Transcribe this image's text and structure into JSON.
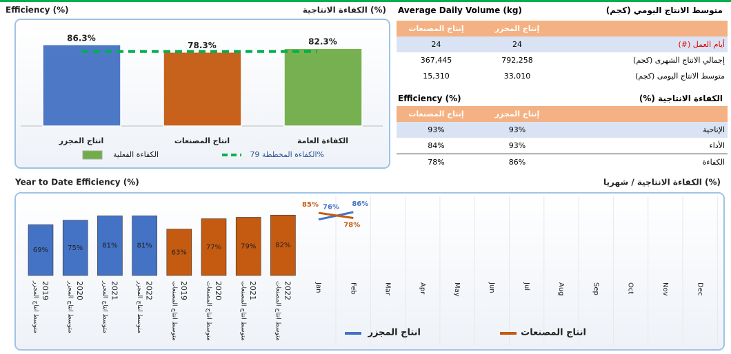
{
  "chart_data": [
    {
      "type": "bar",
      "title": "Efficiency (%)",
      "title_ar": "الكفاءة الانتاجية (%)",
      "categories": [
        "انتاج المجزر",
        "انتاج المصنعات",
        "الكفاءة العامة"
      ],
      "values": [
        86.3,
        78.3,
        82.3
      ],
      "value_labels": [
        "86.3%",
        "78.3%",
        "82.3%"
      ],
      "colors": [
        "#4472c4",
        "#c55a11",
        "#70ad47"
      ],
      "ylim": [
        0,
        100
      ],
      "legend": "الكفاءة الفعلية",
      "target": {
        "name": "الكفاءة المخططة 79%",
        "value": 79,
        "color": "#00b050"
      }
    },
    {
      "type": "bar",
      "title": "Year to Date Efficiency (%)",
      "categories": [
        "متوسط انتاج المجزر",
        "متوسط انتاج المجزر",
        "متوسط انتاج المجزر",
        "متوسط انتاج المجزر",
        "متوسط انتاج المصنعات",
        "متوسط انتاج المصنعات",
        "متوسط انتاج المصنعات",
        "متوسط انتاج المصنعات"
      ],
      "years": [
        "2019",
        "2020",
        "2021",
        "2022",
        "2019",
        "2020",
        "2021",
        "2022"
      ],
      "values": [
        69,
        75,
        81,
        81,
        63,
        77,
        79,
        82
      ],
      "value_labels": [
        "69%",
        "75%",
        "81%",
        "81%",
        "63%",
        "77%",
        "79%",
        "82%"
      ],
      "colors": [
        "#4472c4",
        "#4472c4",
        "#4472c4",
        "#4472c4",
        "#c55a11",
        "#c55a11",
        "#c55a11",
        "#c55a11"
      ],
      "ylim": [
        0,
        100
      ]
    },
    {
      "type": "line",
      "title": "الكفاءة الانتاجية / شهريا (%)",
      "categories": [
        "Jan",
        "Feb",
        "Mar",
        "Apr",
        "May",
        "Jun",
        "Jul",
        "Aug",
        "Sep",
        "Oct",
        "Nov",
        "Dec"
      ],
      "series": [
        {
          "name": "انتاج المجزر",
          "color": "#4472c4",
          "values": [
            76,
            86,
            null,
            null,
            null,
            null,
            null,
            null,
            null,
            null,
            null,
            null
          ],
          "value_labels": [
            "76%",
            "86%",
            null,
            null,
            null,
            null,
            null,
            null,
            null,
            null,
            null,
            null
          ]
        },
        {
          "name": "انتاج المصنعات",
          "color": "#c55a11",
          "values": [
            85,
            78,
            null,
            null,
            null,
            null,
            null,
            null,
            null,
            null,
            null,
            null
          ],
          "value_labels": [
            "85%",
            "78%",
            null,
            null,
            null,
            null,
            null,
            null,
            null,
            null,
            null,
            null
          ]
        }
      ],
      "ylim": [
        0,
        100
      ]
    }
  ],
  "volume_table": {
    "title": "Average Daily Volume  (kg)",
    "title_ar": "متوسط الانتاج اليومي (كجم)",
    "columns": [
      "إنتاج المجزر",
      "إنتاج المصنعات"
    ],
    "rows": [
      {
        "label": "أيام العمل (#)",
        "values": [
          "24",
          "24"
        ]
      },
      {
        "label": "إجمالي الانتاج الشهرى (كجم)",
        "values": [
          "792,258",
          "367,445"
        ]
      },
      {
        "label": "متوسط الانتاج اليومى (كجم)",
        "values": [
          "33,010",
          "15,310"
        ]
      }
    ]
  },
  "efficiency_table": {
    "title": "Efficiency (%)",
    "title_ar": "الكفاءة الانتاجية (%)",
    "columns": [
      "إنتاج المجزر",
      "إنتاج المصنعات"
    ],
    "rows": [
      {
        "label": "الإتاحية",
        "values": [
          "93%",
          "93%"
        ]
      },
      {
        "label": "الأداء",
        "values": [
          "93%",
          "84%"
        ]
      },
      {
        "label": "الكفاءة",
        "values": [
          "86%",
          "78%"
        ]
      }
    ]
  }
}
